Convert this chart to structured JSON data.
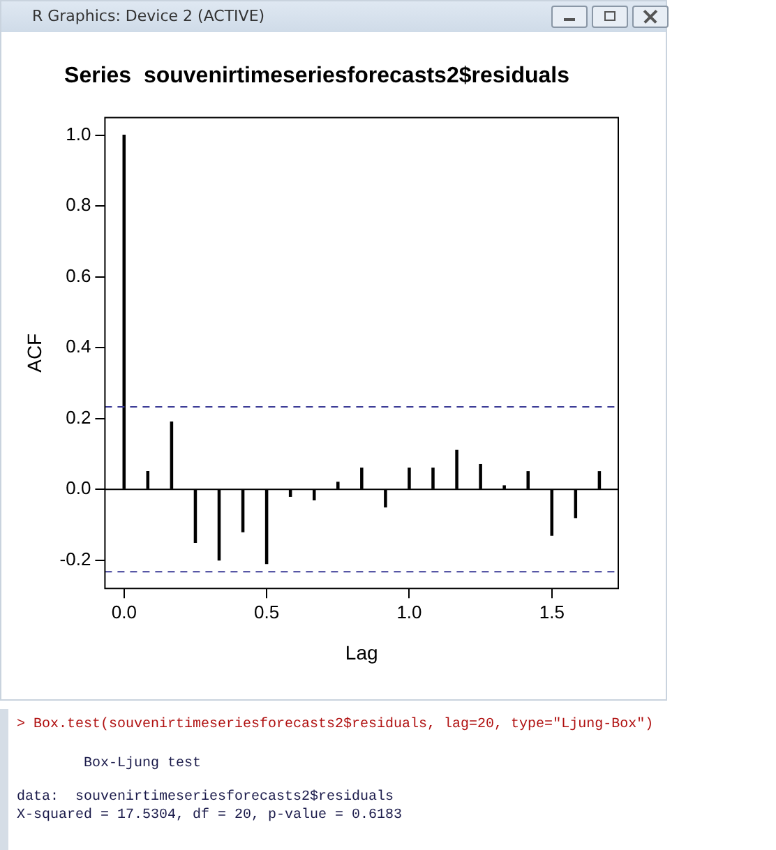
{
  "chart_data": {
    "type": "bar",
    "title": "Series  souvenirtimeseriesforecasts2$residuals",
    "xlabel": "Lag",
    "ylabel": "ACF",
    "x": [
      0,
      0.0833,
      0.1667,
      0.25,
      0.3333,
      0.4167,
      0.5,
      0.5833,
      0.6667,
      0.75,
      0.8333,
      0.9167,
      1,
      1.0833,
      1.1667,
      1.25,
      1.3333,
      1.4167,
      1.5,
      1.5833,
      1.6667
    ],
    "series": [
      {
        "color": "#000000",
        "values": [
          1.0,
          0.05,
          0.19,
          -0.15,
          -0.2,
          -0.12,
          -0.21,
          -0.02,
          -0.03,
          0.02,
          0.06,
          -0.05,
          0.06,
          0.06,
          0.11,
          0.07,
          0.01,
          0.05,
          -0.13,
          -0.08,
          0.05
        ]
      }
    ],
    "xlim": [
      -0.067,
      1.733
    ],
    "xticks": [
      {
        "value": 0,
        "label": "0.0"
      },
      0.5,
      {
        "value": 1,
        "label": "1.0"
      },
      1.5
    ],
    "ylim": [
      -0.28,
      1.05
    ],
    "yticks": [
      -0.2,
      {
        "value": 0,
        "label": "0.0"
      },
      0.2,
      0.4,
      0.6,
      0.8,
      {
        "value": 1,
        "label": "1.0"
      }
    ],
    "ref_lines": [
      {
        "axis": "y",
        "value": 0,
        "color": "#000000",
        "line_style": "solid"
      },
      {
        "axis": "y",
        "value": 0.233,
        "color": "#3b3b96",
        "line_style": "dashed"
      },
      {
        "axis": "y",
        "value": -0.233,
        "color": "#3b3b96",
        "line_style": "dashed"
      }
    ],
    "grid": false,
    "legend": false,
    "annotations": [
      "R Graphics: Device 2 (ACTIVE)",
      "> Box.test(souvenirtimeseriesforecasts2$residuals, lag=20, type=\"Ljung-Box\")",
      "        Box-Ljung test",
      "data:  souvenirtimeseriesforecasts2$residuals",
      "X-squared = 17.5304, df = 20, p-value = 0.6183"
    ]
  }
}
